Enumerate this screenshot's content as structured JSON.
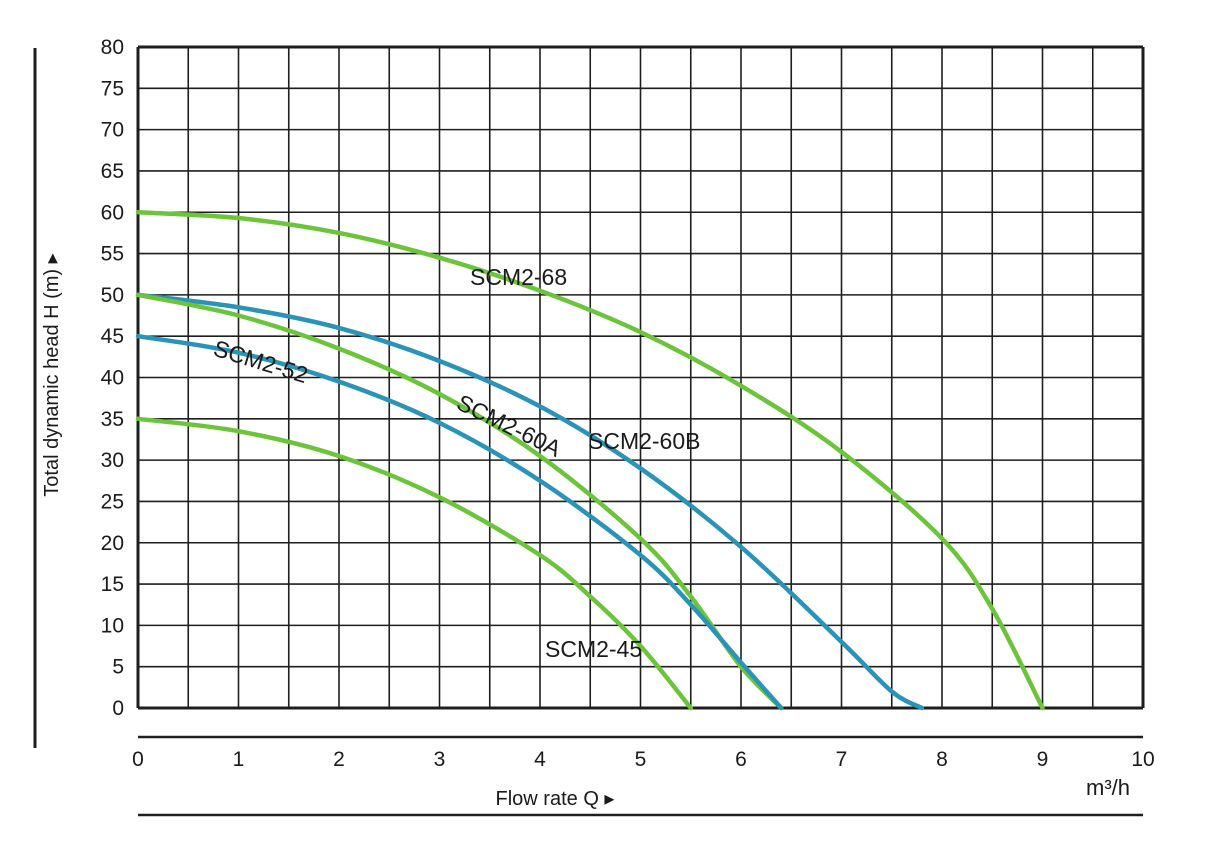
{
  "chart_data": {
    "type": "line",
    "title": "",
    "xlabel": "Flow rate Q ▸",
    "ylabel": "Total dynamic head H (m) ▸",
    "x_unit": "m³/h",
    "xlim": [
      0,
      10
    ],
    "ylim": [
      0,
      80
    ],
    "x_ticks": [
      "0",
      "1",
      "2",
      "3",
      "4",
      "5",
      "6",
      "7",
      "8",
      "9",
      "10"
    ],
    "y_ticks": [
      "0",
      "5",
      "10",
      "15",
      "20",
      "25",
      "30",
      "35",
      "40",
      "45",
      "50",
      "55",
      "60",
      "65",
      "70",
      "75",
      "80"
    ],
    "grid": true,
    "colors": {
      "green": "#6cc43a",
      "blue": "#2a93b8",
      "grid": "#1e1e1e"
    },
    "series": [
      {
        "name": "SCM2-68",
        "color": "#6cc43a",
        "x": [
          0,
          1,
          2,
          3,
          4,
          5,
          6,
          7,
          8,
          8.5,
          9.0
        ],
        "y": [
          60,
          59.3,
          57.5,
          54.5,
          50.5,
          45.5,
          39,
          31,
          20.5,
          12,
          0
        ]
      },
      {
        "name": "SCM2-60B",
        "color": "#2a93b8",
        "x": [
          0,
          1,
          2,
          3,
          4,
          5,
          6,
          7,
          7.5,
          7.8
        ],
        "y": [
          50,
          48.5,
          46,
          42,
          36.5,
          29,
          19.5,
          8,
          2,
          0
        ]
      },
      {
        "name": "SCM2-60A",
        "color": "#6cc43a",
        "x": [
          0,
          1,
          2,
          3,
          4,
          5,
          5.5,
          6.0,
          6.4
        ],
        "y": [
          50,
          47.5,
          43.5,
          38,
          30.5,
          20.5,
          13.5,
          5,
          0
        ]
      },
      {
        "name": "SCM2-52",
        "color": "#2a93b8",
        "x": [
          0,
          1,
          2,
          3,
          4,
          5,
          5.5,
          6.0,
          6.4
        ],
        "y": [
          45,
          43,
          39.5,
          34.5,
          27.5,
          18.5,
          12.5,
          5.5,
          0
        ]
      },
      {
        "name": "SCM2-45",
        "color": "#6cc43a",
        "x": [
          0,
          1,
          2,
          3,
          4,
          4.5,
          5.0,
          5.5
        ],
        "y": [
          35,
          33.5,
          30.5,
          25.5,
          18.5,
          13.5,
          7.5,
          0
        ]
      }
    ]
  }
}
